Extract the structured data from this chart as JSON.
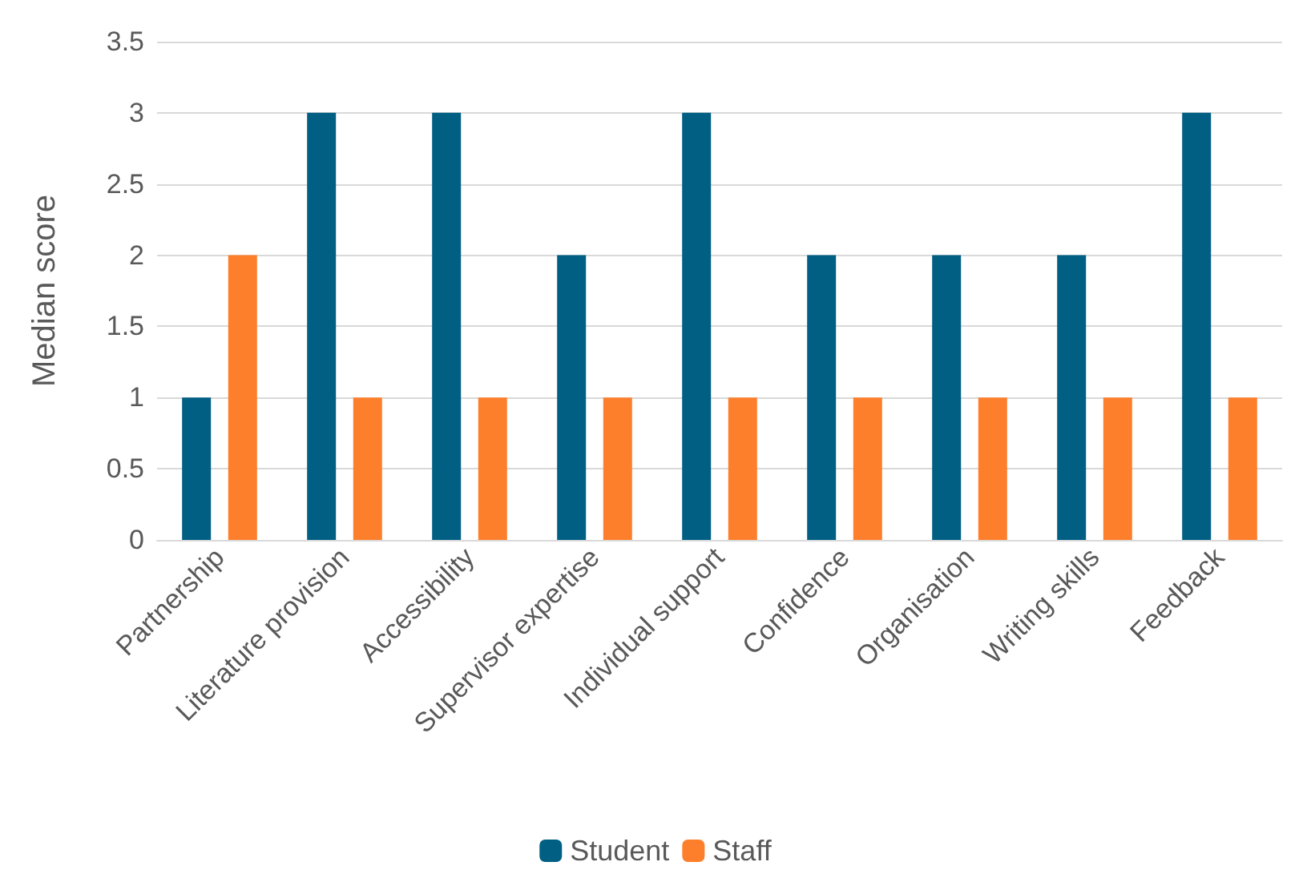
{
  "chart_data": {
    "type": "bar",
    "ylabel": "Median score",
    "categories": [
      "Partnership",
      "Literature provision",
      "Accessibility",
      "Supervisor expertise",
      "Individual support",
      "Confidence",
      "Organisation",
      "Writing skills",
      "Feedback"
    ],
    "series": [
      {
        "name": "Student",
        "color": "#005f83",
        "values": [
          1,
          3,
          3,
          2,
          3,
          2,
          2,
          2,
          3
        ]
      },
      {
        "name": "Staff",
        "color": "#fd7f2c",
        "values": [
          2,
          1,
          1,
          1,
          1,
          1,
          1,
          1,
          1
        ]
      }
    ],
    "ylim": [
      0,
      3.5
    ],
    "yticks": [
      0,
      0.5,
      1,
      1.5,
      2,
      2.5,
      3,
      3.5
    ],
    "grid": "y",
    "legend": "bottom"
  }
}
